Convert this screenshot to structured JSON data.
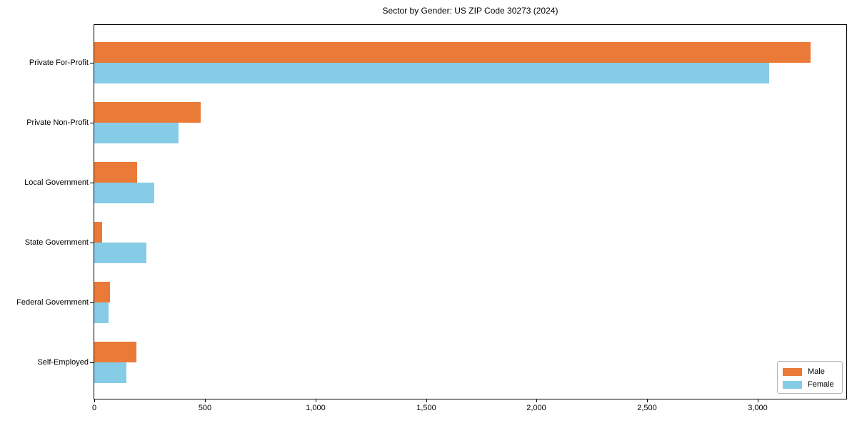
{
  "chart_data": {
    "type": "bar",
    "orientation": "horizontal",
    "title": "Sector by Gender: US ZIP Code 30273 (2024)",
    "categories": [
      "Private For-Profit",
      "Private Non-Profit",
      "Local Government",
      "State Government",
      "Federal Government",
      "Self-Employed"
    ],
    "series": [
      {
        "name": "Male",
        "color": "#EA7A38",
        "values": [
          3240,
          480,
          195,
          35,
          70,
          190
        ]
      },
      {
        "name": "Female",
        "color": "#86CCE6",
        "values": [
          3050,
          380,
          270,
          235,
          65,
          145
        ]
      }
    ],
    "xlabel": "",
    "ylabel": "",
    "xlim": [
      0,
      3400
    ],
    "xticks": [
      0,
      500,
      1000,
      1500,
      2000,
      2500,
      3000
    ],
    "xtick_labels": [
      "0",
      "500",
      "1,000",
      "1,500",
      "2,000",
      "2,500",
      "3,000"
    ],
    "grid": false,
    "legend_position": "lower right"
  }
}
